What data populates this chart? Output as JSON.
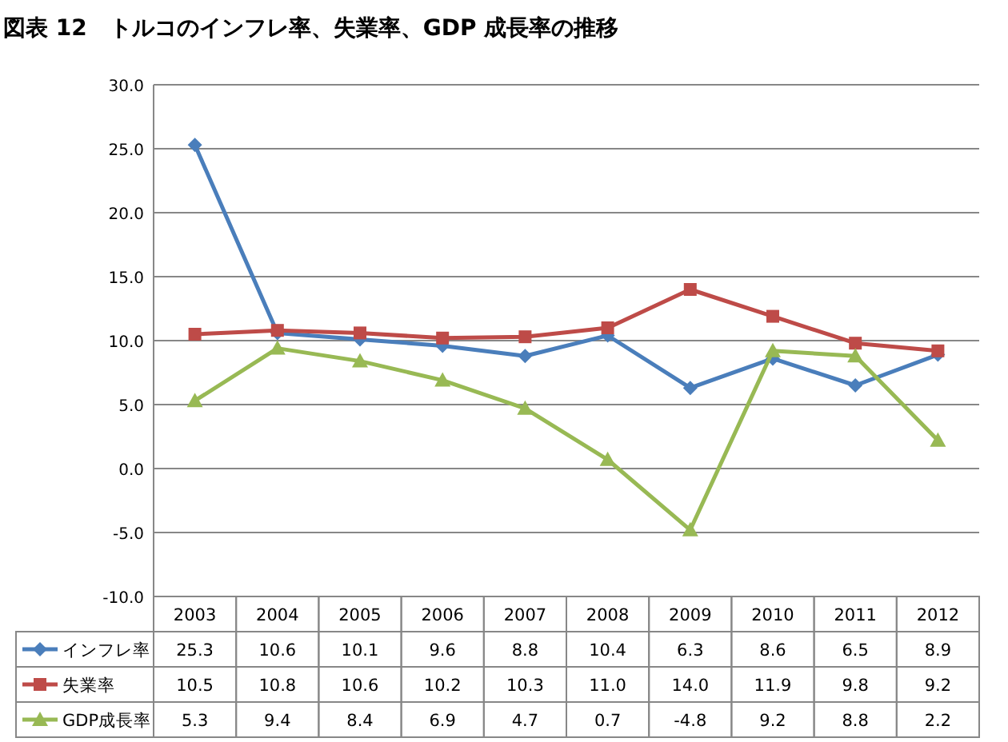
{
  "chart_data": {
    "type": "line",
    "title": "図表 12　トルコのインフレ率、失業率、GDP 成長率の推移",
    "categories": [
      "2003",
      "2004",
      "2005",
      "2006",
      "2007",
      "2008",
      "2009",
      "2010",
      "2011",
      "2012"
    ],
    "series": [
      {
        "name": "インフレ率",
        "color": "#4a7ebb",
        "marker": "diamond",
        "values": [
          25.3,
          10.6,
          10.1,
          9.6,
          8.8,
          10.4,
          6.3,
          8.6,
          6.5,
          8.9
        ],
        "value_labels": [
          "25.3",
          "10.6",
          "10.1",
          "9.6",
          "8.8",
          "10.4",
          "6.3",
          "8.6",
          "6.5",
          "8.9"
        ]
      },
      {
        "name": "失業率",
        "color": "#be4b48",
        "marker": "square",
        "values": [
          10.5,
          10.8,
          10.6,
          10.2,
          10.3,
          11.0,
          14.0,
          11.9,
          9.8,
          9.2
        ],
        "value_labels": [
          "10.5",
          "10.8",
          "10.6",
          "10.2",
          "10.3",
          "11.0",
          "14.0",
          "11.9",
          "9.8",
          "9.2"
        ]
      },
      {
        "name": "GDP成長率",
        "color": "#98b954",
        "marker": "triangle",
        "values": [
          5.3,
          9.4,
          8.4,
          6.9,
          4.7,
          0.7,
          -4.8,
          9.2,
          8.8,
          2.2
        ],
        "value_labels": [
          "5.3",
          "9.4",
          "8.4",
          "6.9",
          "4.7",
          "0.7",
          "-4.8",
          "9.2",
          "8.8",
          "2.2"
        ]
      }
    ],
    "ylim": [
      -10,
      30
    ],
    "yticks": [
      {
        "value": -10,
        "label": "-10.0"
      },
      {
        "value": -5,
        "label": "-5.0"
      },
      {
        "value": 0,
        "label": "0.0"
      },
      {
        "value": 5,
        "label": "5.0"
      },
      {
        "value": 10,
        "label": "10.0"
      },
      {
        "value": 15,
        "label": "15.0"
      },
      {
        "value": 20,
        "label": "20.0"
      },
      {
        "value": 25,
        "label": "25.0"
      },
      {
        "value": 30,
        "label": "30.0"
      }
    ],
    "grid": "y",
    "legend": "bottom"
  }
}
